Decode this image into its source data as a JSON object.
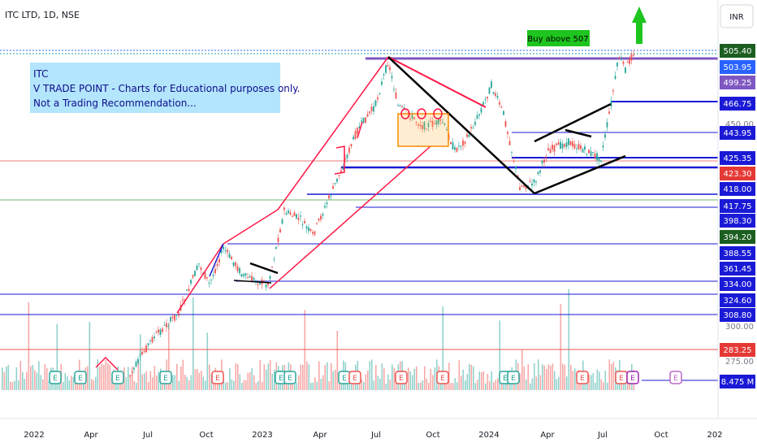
{
  "header": {
    "symbol_title": "ITC LTD, 1D, NSE",
    "currency": "INR"
  },
  "note": {
    "lines": [
      "ITC",
      "V TRADE POINT - Charts for Educational purposes only.",
      "Not a Trading Recommendation..."
    ]
  },
  "buy_label": "Buy above 507",
  "chart_data": {
    "type": "candlestick",
    "y_axis": {
      "position": "right",
      "visible_ticks": [
        "450.00",
        "300.00",
        "275.00"
      ]
    },
    "x_axis": {
      "labels": [
        "2022",
        "Apr",
        "Jul",
        "Oct",
        "2023",
        "Apr",
        "Jul",
        "Oct",
        "2024",
        "Apr",
        "Jul",
        "Oct",
        "202"
      ]
    },
    "price_labels": [
      {
        "value": "505.40",
        "color": "#1b5e20"
      },
      {
        "value": "503.95",
        "color": "#2962ff"
      },
      {
        "value": "499.25",
        "color": "#7e57c2"
      },
      {
        "value": "466.75",
        "color": "#1a1ad6"
      },
      {
        "value": "443.95",
        "color": "#1a1ad6"
      },
      {
        "value": "425.35",
        "color": "#1a1ad6"
      },
      {
        "value": "423.30",
        "color": "#e53935"
      },
      {
        "value": "418.00",
        "color": "#1a1ad6"
      },
      {
        "value": "417.75",
        "color": "#1a1ad6"
      },
      {
        "value": "398.30",
        "color": "#1a1ad6"
      },
      {
        "value": "394.20",
        "color": "#1b5e20"
      },
      {
        "value": "388.55",
        "color": "#1a1ad6"
      },
      {
        "value": "361.45",
        "color": "#1a1ad6"
      },
      {
        "value": "334.00",
        "color": "#1a1ad6"
      },
      {
        "value": "324.60",
        "color": "#1a1ad6"
      },
      {
        "value": "308.80",
        "color": "#1a1ad6"
      },
      {
        "value": "283.25",
        "color": "#e53935"
      },
      {
        "value": "8.475 M",
        "color": "#1a1ad6"
      }
    ],
    "event_markers": [
      "E",
      "E",
      "E",
      "E",
      "E",
      "E",
      "E",
      "E",
      "E",
      "E",
      "E",
      "E",
      "E",
      "E",
      "E",
      "E",
      "E"
    ],
    "colors": {
      "up": "#26a69a",
      "down": "#ef5350",
      "trendline": "#ff1744",
      "pattern": "#000000",
      "level": "#1a1ad6",
      "highline": "#7e57c2",
      "arrow": "#1ec51e"
    }
  }
}
